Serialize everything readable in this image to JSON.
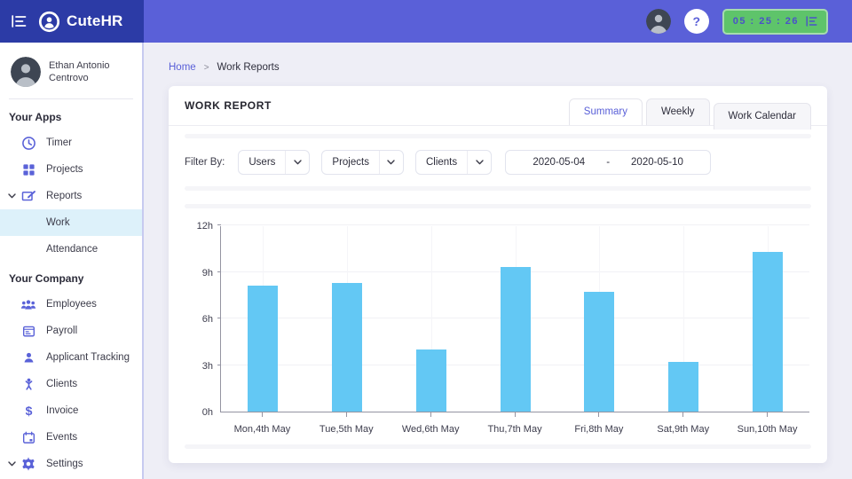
{
  "topbar": {
    "brand": "CuteHR",
    "timer_value": "05 : 25 : 26",
    "help_label": "?"
  },
  "sidebar": {
    "user_name": "Ethan Antonio Centrovo",
    "sections": [
      {
        "title": "Your Apps",
        "items": [
          {
            "label": "Timer",
            "icon": "timer-icon"
          },
          {
            "label": "Projects",
            "icon": "projects-icon"
          },
          {
            "label": "Reports",
            "icon": "reports-icon",
            "expanded": true,
            "children": [
              {
                "label": "Work",
                "active": true
              },
              {
                "label": "Attendance"
              }
            ]
          }
        ]
      },
      {
        "title": "Your Company",
        "items": [
          {
            "label": "Employees",
            "icon": "employees-icon"
          },
          {
            "label": "Payroll",
            "icon": "payroll-icon"
          },
          {
            "label": "Applicant Tracking",
            "icon": "applicant-tracking-icon"
          },
          {
            "label": "Clients",
            "icon": "clients-icon"
          },
          {
            "label": "Invoice",
            "icon": "invoice-icon"
          },
          {
            "label": "Events",
            "icon": "events-icon"
          },
          {
            "label": "Settings",
            "icon": "settings-icon",
            "expanded": true
          }
        ]
      }
    ]
  },
  "breadcrumb": {
    "home": "Home",
    "separator": ">",
    "current": "Work Reports"
  },
  "report": {
    "title": "WORK REPORT",
    "tabs": [
      {
        "label": "Summary",
        "active": true
      },
      {
        "label": "Weekly",
        "active": false
      },
      {
        "label": "Work Calendar",
        "active": false
      }
    ],
    "filter_label": "Filter By:",
    "filters": [
      "Users",
      "Projects",
      "Clients"
    ],
    "date_range": {
      "start": "2020-05-04",
      "separator": "-",
      "end": "2020-05-10"
    }
  },
  "chart_data": {
    "type": "bar",
    "categories": [
      "Mon,4th May",
      "Tue,5th May",
      "Wed,6th May",
      "Thu,7th May",
      "Fri,8th May",
      "Sat,9th May",
      "Sun,10th May"
    ],
    "values": [
      8.1,
      8.3,
      4.0,
      9.3,
      7.7,
      3.2,
      10.3
    ],
    "title": "",
    "xlabel": "",
    "ylabel": "",
    "ylim": [
      0,
      12
    ],
    "yticks": [
      0,
      3,
      6,
      9,
      12
    ],
    "ytick_labels": [
      "0h",
      "3h",
      "6h",
      "9h",
      "12h"
    ],
    "bar_color": "#63c8f4",
    "grid": true,
    "legend": "none"
  },
  "colors": {
    "accent": "#5a60d8",
    "brand_dark": "#2c3ba6",
    "timer_green": "#5ec46a",
    "bar_blue": "#63c8f4",
    "active_item_bg": "#ddf1fa"
  }
}
